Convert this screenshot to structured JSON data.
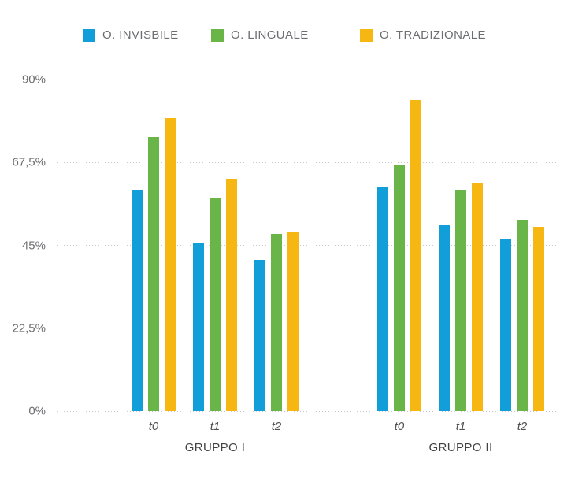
{
  "legend": {
    "items": [
      {
        "label": "O. INVISBILE",
        "color": "#129fd9"
      },
      {
        "label": "O. LINGUALE",
        "color": "#6ab547"
      },
      {
        "label": "O. TRADIZIONALE",
        "color": "#f7b713"
      }
    ]
  },
  "chart_data": {
    "type": "bar",
    "title": "",
    "xlabel": "",
    "ylabel": "",
    "ylim": [
      0,
      90
    ],
    "grid": "dotted-horizontal",
    "legend_position": "top",
    "decimal_separator": ",",
    "yticks": [
      {
        "value": 0,
        "label": "0%"
      },
      {
        "value": 22.5,
        "label": "22,5%"
      },
      {
        "value": 45,
        "label": "45%"
      },
      {
        "value": 67.5,
        "label": "67,5%"
      },
      {
        "value": 90,
        "label": "90%"
      }
    ],
    "series_names": [
      "O. INVISBILE",
      "O. LINGUALE",
      "O. TRADIZIONALE"
    ],
    "series_colors": [
      "#129fd9",
      "#6ab547",
      "#f7b713"
    ],
    "groups": [
      {
        "label": "GRUPPO I",
        "categories": [
          "t0",
          "t1",
          "t2"
        ],
        "series": [
          {
            "name": "O. INVISBILE",
            "values": [
              60,
              45.5,
              41
            ]
          },
          {
            "name": "O. LINGUALE",
            "values": [
              74.5,
              58,
              48
            ]
          },
          {
            "name": "O. TRADIZIONALE",
            "values": [
              79.5,
              63,
              48.5
            ]
          }
        ]
      },
      {
        "label": "GRUPPO II",
        "categories": [
          "t0",
          "t1",
          "t2"
        ],
        "series": [
          {
            "name": "O. INVISBILE",
            "values": [
              61,
              50.5,
              46.5
            ]
          },
          {
            "name": "O. LINGUALE",
            "values": [
              67,
              60,
              52
            ]
          },
          {
            "name": "O. TRADIZIONALE",
            "values": [
              84.5,
              62,
              50
            ]
          }
        ]
      }
    ]
  }
}
